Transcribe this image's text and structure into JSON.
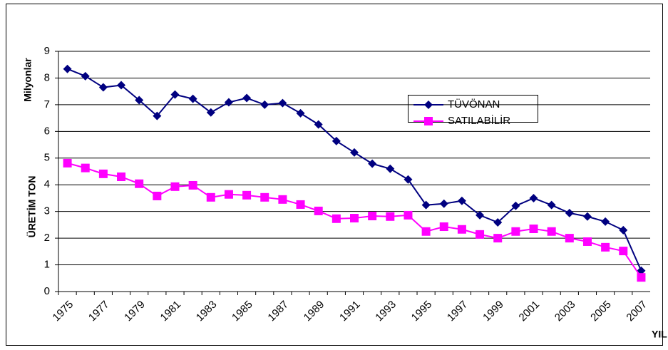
{
  "chart_data": {
    "type": "line",
    "y_label": "ÜRETİM TON",
    "y_unit_label": "Milyonlar",
    "x_label": "YIL",
    "categories": [
      "1975",
      null,
      "1977",
      null,
      "1979",
      null,
      "1981",
      null,
      "1983",
      null,
      "1985",
      null,
      "1987",
      null,
      "1989",
      null,
      "1991",
      null,
      "1993",
      null,
      "1995",
      null,
      "1997",
      null,
      "1999",
      null,
      "2001",
      null,
      "2003",
      null,
      "2005",
      null,
      "2007"
    ],
    "series": [
      {
        "name": "TÜVÖNAN",
        "color": "#000080",
        "marker": "diamond",
        "values": [
          8.34,
          8.07,
          7.65,
          7.73,
          7.17,
          6.58,
          7.38,
          7.22,
          6.71,
          7.09,
          7.25,
          7.0,
          7.06,
          6.68,
          6.26,
          5.64,
          5.21,
          4.79,
          4.6,
          4.2,
          3.24,
          3.29,
          3.4,
          2.86,
          2.59,
          3.21,
          3.5,
          3.24,
          2.94,
          2.81,
          2.62,
          2.3,
          0.78
        ]
      },
      {
        "name": "SATILABİLİR",
        "color": "#ff00ff",
        "marker": "square",
        "values": [
          4.81,
          4.63,
          4.41,
          4.3,
          4.04,
          3.58,
          3.93,
          3.98,
          3.53,
          3.64,
          3.61,
          3.53,
          3.45,
          3.26,
          3.02,
          2.73,
          2.75,
          2.83,
          2.81,
          2.86,
          2.25,
          2.43,
          2.33,
          2.14,
          2.0,
          2.25,
          2.35,
          2.25,
          2.0,
          1.87,
          1.66,
          1.52,
          0.53
        ]
      }
    ],
    "ylim": [
      0,
      9
    ],
    "yticks": [
      0,
      1,
      2,
      3,
      4,
      5,
      6,
      7,
      8,
      9
    ],
    "grid": true
  }
}
